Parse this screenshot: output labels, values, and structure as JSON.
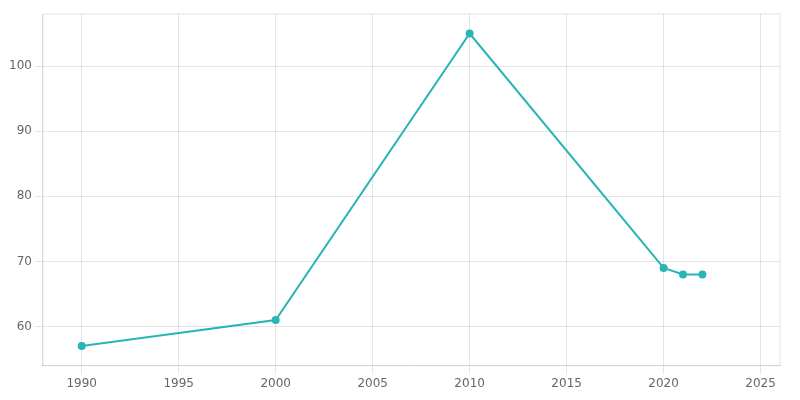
{
  "chart_data": {
    "type": "line",
    "x": [
      1990,
      2000,
      2010,
      2020,
      2021,
      2022
    ],
    "values": [
      57,
      61,
      105,
      69,
      68,
      68
    ],
    "color": "#2AB5B5",
    "marker": "circle",
    "xlim": [
      1988,
      2026
    ],
    "ylim": [
      54,
      108
    ],
    "xticks": [
      1990,
      1995,
      2000,
      2005,
      2010,
      2015,
      2020,
      2025
    ],
    "yticks": [
      60,
      70,
      80,
      90,
      100
    ],
    "grid": true
  }
}
